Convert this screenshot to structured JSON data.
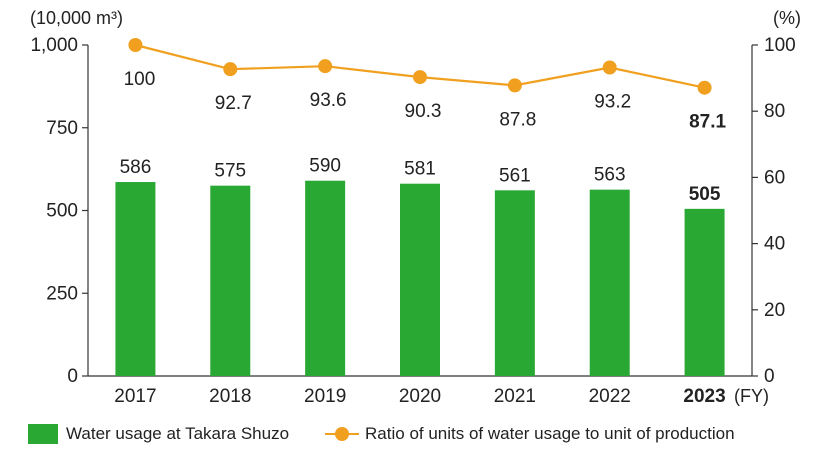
{
  "chart_data": {
    "type": "bar",
    "left_axis_unit": "(10,000 m³)",
    "right_axis_unit": "(%)",
    "x_unit": "(FY)",
    "categories": [
      "2017",
      "2018",
      "2019",
      "2020",
      "2021",
      "2022",
      "2023"
    ],
    "emphasized_category": "2023",
    "left_ticks": [
      "0",
      "250",
      "500",
      "750",
      "1,000"
    ],
    "right_ticks": [
      "0",
      "20",
      "40",
      "60",
      "80",
      "100"
    ],
    "ylim_left": [
      0,
      1000
    ],
    "ylim_right": [
      0,
      100
    ],
    "series": [
      {
        "name": "Water usage at Takara Shuzo",
        "type": "bar",
        "axis": "left",
        "color": "#2aa834",
        "values": [
          586,
          575,
          590,
          581,
          561,
          563,
          505
        ],
        "labels": [
          "586",
          "575",
          "590",
          "581",
          "561",
          "563",
          "505"
        ]
      },
      {
        "name": "Ratio of units of water usage to unit of production",
        "type": "line",
        "axis": "right",
        "color": "#f0a01e",
        "values": [
          100,
          92.7,
          93.6,
          90.3,
          87.8,
          93.2,
          87.1
        ],
        "labels": [
          "100",
          "92.7",
          "93.6",
          "90.3",
          "87.8",
          "93.2",
          "87.1"
        ]
      }
    ],
    "legend": [
      "Water usage at Takara Shuzo",
      "Ratio of units of water usage to unit of production"
    ],
    "legend_position": "bottom",
    "grid": false
  }
}
